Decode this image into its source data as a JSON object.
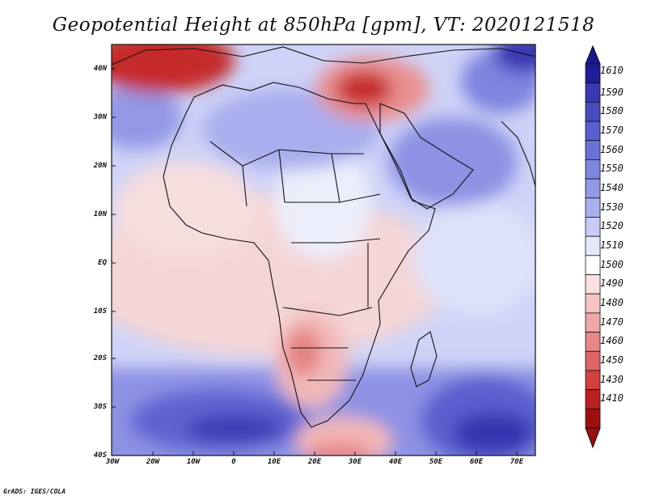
{
  "title": "Geopotential Height at 850hPa [gpm], VT: 2020121518",
  "credit": "GrADS: IGES/COLA",
  "map": {
    "lat_labels": [
      "40N",
      "30N",
      "20N",
      "10N",
      "EQ",
      "10S",
      "20S",
      "30S",
      "40S"
    ],
    "lon_labels": [
      "30W",
      "20W",
      "10W",
      "0",
      "10E",
      "20E",
      "30E",
      "40E",
      "50E",
      "60E",
      "70E"
    ]
  },
  "colorbar": {
    "levels": [
      "1610",
      "1590",
      "1580",
      "1570",
      "1560",
      "1550",
      "1540",
      "1530",
      "1520",
      "1510",
      "1500",
      "1490",
      "1480",
      "1470",
      "1460",
      "1450",
      "1430",
      "1410"
    ],
    "colors": [
      "#201c9a",
      "#3a38b4",
      "#4a4cc4",
      "#5a5ecf",
      "#6c71d8",
      "#7e85e0",
      "#9399e6",
      "#aab0ee",
      "#c8ccf5",
      "#e6e8fb",
      "#ffffff",
      "#fbe0e0",
      "#f5c3c3",
      "#efa6a6",
      "#e88686",
      "#df6464",
      "#d24040",
      "#bb2020",
      "#9e1010"
    ],
    "arrow_top_color": "#1a168f",
    "arrow_bottom_color": "#9a0e0e"
  }
}
